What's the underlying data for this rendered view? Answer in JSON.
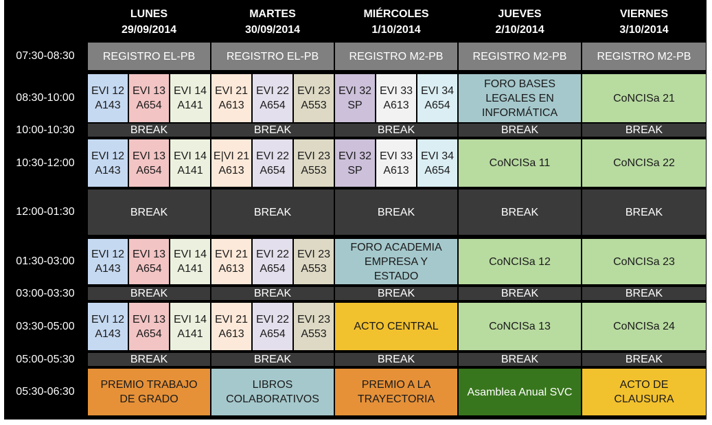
{
  "days": [
    {
      "name": "LUNES",
      "date": "29/09/2014"
    },
    {
      "name": "MARTES",
      "date": "30/09/2014"
    },
    {
      "name": "MIÉRCOLES",
      "date": "1/10/2014"
    },
    {
      "name": "JUEVES",
      "date": "2/10/2014"
    },
    {
      "name": "VIERNES",
      "date": "3/10/2014"
    }
  ],
  "times": [
    "07:30-08:30",
    "08:30-10:00",
    "10:00-10:30",
    "10:30-12:00",
    "12:00-01:30",
    "01:30-03:00",
    "03:00-03:30",
    "03:30-05:00",
    "05:00-05:30",
    "05:30-06:30"
  ],
  "labels": {
    "registro_elpb": "REGISTRO EL-PB",
    "registro_m2pb": "REGISTRO M2-PB",
    "break": "BREAK",
    "foro_bases": "FORO BASES\nLEGALES EN\nINFORMÁTICA",
    "foro_academia": "FORO ACADEMIA\nEMPRESA Y\nESTADO",
    "acto_central": "ACTO CENTRAL",
    "premio_trabajo": "PREMIO TRABAJO\nDE GRADO",
    "libros": "LIBROS\nCOLABORATIVOS",
    "premio_trayectoria": "PREMIO A LA\nTRAYECTORIA",
    "asamblea": "Asamblea Anual SVC",
    "acto_clausura": "ACTO DE\nCLAUSURA",
    "concisa_11": "CoNCISa 11",
    "concisa_12": "CoNCISa 12",
    "concisa_13": "CoNCISa 13",
    "concisa_21": "CoNCISa 21",
    "concisa_22": "CoNCISa 22",
    "concisa_23": "CoNCISa 23",
    "concisa_24": "CoNCISa 24"
  },
  "evi": {
    "12": "EVI 12\nA143",
    "13": "EVI 13\nA654",
    "14": "EVI 14\nA141",
    "21": "EVI 21\nA613",
    "21b": "E|VI 21\nA613",
    "22": "EVI 22\nA654",
    "23": "EVI 23\nA553",
    "32": "EVI 32\nSP",
    "33": "EVI 33\nA613",
    "34": "EVI 34\nA654"
  },
  "colors": {
    "background": "#000000",
    "registro": "#808080",
    "break": "#3a3a3a",
    "evi12": "#c5d9f1",
    "evi13": "#f2c4c4",
    "evi14": "#ebf1de",
    "evi21": "#fde9d9",
    "evi22": "#e4dfec",
    "evi23": "#ddd9c4",
    "evi32": "#ccc0da",
    "evi33": "#f2f2f2",
    "evi34": "#daeef3",
    "foro": "#a5c8cc",
    "concisa": "#b8dba0",
    "acto": "#f2c12e",
    "premio": "#e69138",
    "libros": "#a5c8cc",
    "asamblea": "#38761d"
  }
}
